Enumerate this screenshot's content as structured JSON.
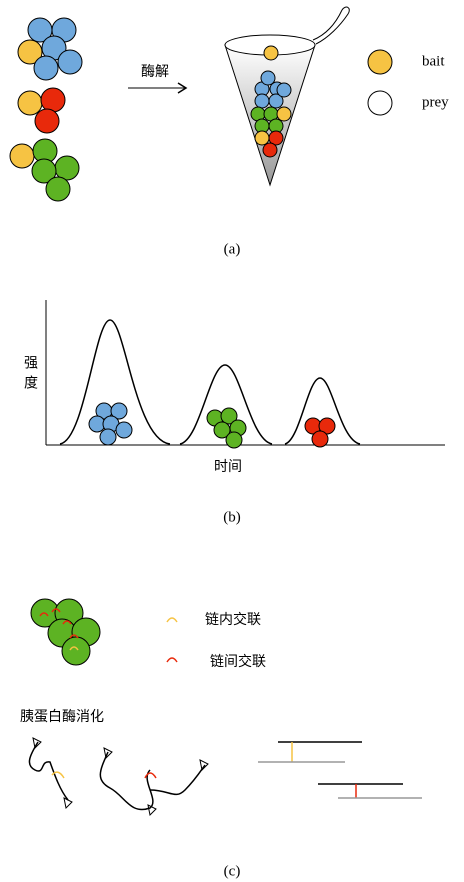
{
  "panel_a": {
    "arrow_label": "酶解",
    "legend": [
      {
        "label": "bait"
      },
      {
        "label": "prey"
      }
    ],
    "caption": "(a)"
  },
  "panel_b": {
    "y_label": "强度",
    "x_label": "时间",
    "caption": "(b)"
  },
  "panel_c": {
    "legend": [
      {
        "label": "链内交联"
      },
      {
        "label": "链间交联"
      }
    ],
    "step_label": "胰蛋白酶消化",
    "caption": "(c)"
  }
}
